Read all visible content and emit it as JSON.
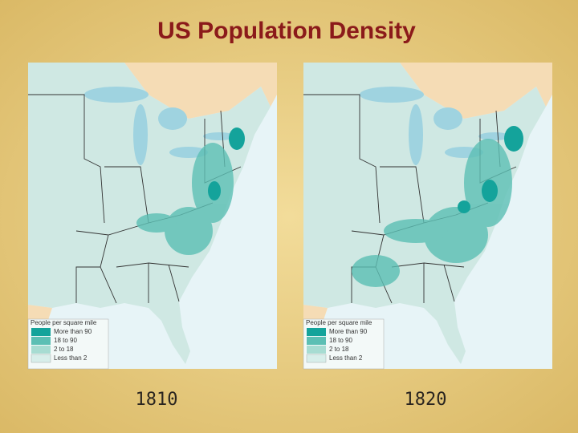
{
  "title": "US Population Density",
  "maps": [
    {
      "year": "1810",
      "legend": {
        "title": "People per square mile",
        "items": [
          "More than 90",
          "18 to 90",
          "2 to 18",
          "Less than 2"
        ]
      }
    },
    {
      "year": "1820",
      "legend": {
        "title": "People per square mile",
        "items": [
          "More than 90",
          "18 to 90",
          "2 to 18",
          "Less than 2"
        ]
      }
    }
  ]
}
